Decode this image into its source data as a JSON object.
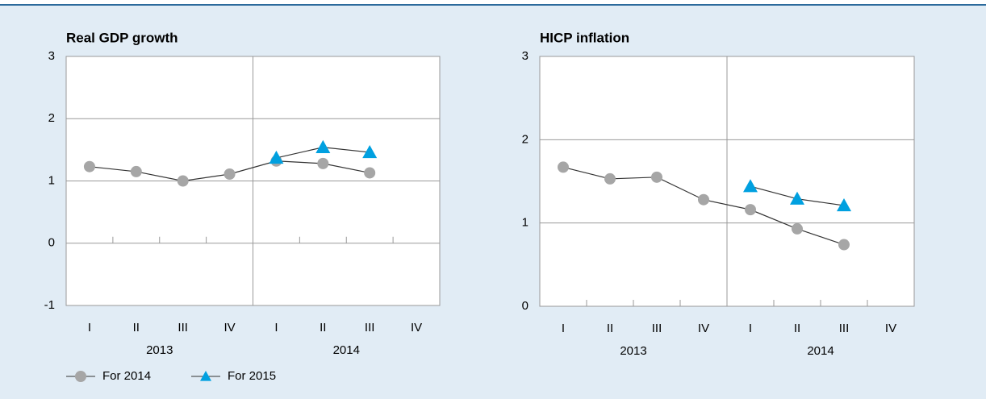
{
  "chart_data": [
    {
      "type": "line",
      "title": "Real GDP growth",
      "categories": [
        "I",
        "II",
        "III",
        "IV",
        "I",
        "II",
        "III",
        "IV"
      ],
      "x_groups": [
        "2013",
        "2014"
      ],
      "ylim": [
        -1,
        3
      ],
      "yticks": [
        -1,
        0,
        1,
        2,
        3
      ],
      "grid": true,
      "series": [
        {
          "name": "For 2014",
          "marker": "circle",
          "color": "#a6a6a6",
          "line_color": "#333333",
          "values": [
            1.23,
            1.15,
            1.0,
            1.11,
            1.32,
            1.28,
            1.13,
            null
          ]
        },
        {
          "name": "For 2015",
          "marker": "triangle",
          "color": "#00a0e0",
          "line_color": "#333333",
          "values": [
            null,
            null,
            null,
            null,
            1.37,
            1.54,
            1.46,
            null
          ]
        }
      ]
    },
    {
      "type": "line",
      "title": "HICP inflation",
      "categories": [
        "I",
        "II",
        "III",
        "IV",
        "I",
        "II",
        "III",
        "IV"
      ],
      "x_groups": [
        "2013",
        "2014"
      ],
      "ylim": [
        0,
        3
      ],
      "yticks": [
        0,
        1,
        2,
        3
      ],
      "grid": true,
      "series": [
        {
          "marker": "circle",
          "color": "#a6a6a6",
          "line_color": "#333333",
          "values": [
            1.67,
            1.53,
            1.55,
            1.28,
            1.16,
            0.93,
            0.74,
            null
          ]
        },
        {
          "marker": "triangle",
          "color": "#00a0e0",
          "line_color": "#333333",
          "values": [
            null,
            null,
            null,
            null,
            1.44,
            1.29,
            1.21,
            null
          ]
        }
      ]
    }
  ]
}
